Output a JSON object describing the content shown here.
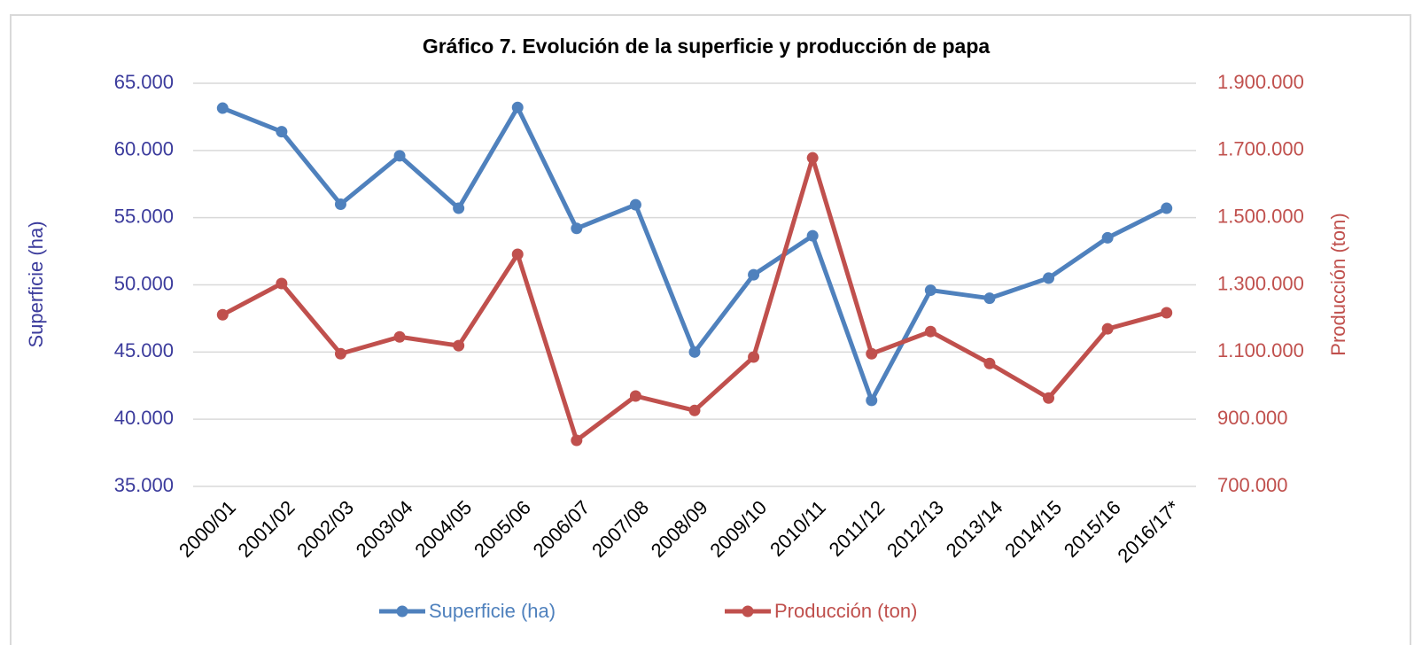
{
  "chart_data": {
    "type": "line",
    "title": "Gráfico 7. Evolución de la superficie y producción de papa",
    "y_label": "Superficie (ha)",
    "y2_label": "Producción (ton)",
    "categories": [
      "2000/01",
      "2001/02",
      "2002/03",
      "2003/04",
      "2004/05",
      "2005/06",
      "2006/07",
      "2007/08",
      "2008/09",
      "2009/10",
      "2010/11",
      "2011/12",
      "2012/13",
      "2013/14",
      "2014/15",
      "2015/16",
      "2016/17*"
    ],
    "series": [
      {
        "name": "Superficie (ha)",
        "color": "#4f81bd",
        "values": [
          63150,
          61400,
          56000,
          59600,
          55700,
          63200,
          54200,
          55960,
          45000,
          50750,
          53650,
          41400,
          49600,
          49000,
          50500,
          53500,
          55700
        ]
      },
      {
        "name": "Producción (ton)",
        "color": "#c0504d",
        "axis": "y2",
        "values": [
          1211000,
          1304000,
          1095000,
          1145000,
          1119000,
          1391000,
          837000,
          969000,
          926000,
          1085000,
          1678000,
          1095000,
          1161000,
          1066000,
          963000,
          1169000,
          1217000
        ]
      }
    ],
    "ylim": [
      35000,
      65000
    ],
    "yticks": [
      {
        "value": 35000,
        "label": "35.000"
      },
      {
        "value": 40000,
        "label": "40.000"
      },
      {
        "value": 45000,
        "label": "45.000"
      },
      {
        "value": 50000,
        "label": "50.000"
      },
      {
        "value": 55000,
        "label": "55.000"
      },
      {
        "value": 60000,
        "label": "60.000"
      },
      {
        "value": 65000,
        "label": "65.000"
      }
    ],
    "y2lim": [
      700000,
      1900000
    ],
    "y2ticks": [
      {
        "value": 700000,
        "label": "700.000"
      },
      {
        "value": 900000,
        "label": "900.000"
      },
      {
        "value": 1100000,
        "label": "1.100.000"
      },
      {
        "value": 1300000,
        "label": "1.300.000"
      },
      {
        "value": 1500000,
        "label": "1.500.000"
      },
      {
        "value": 1700000,
        "label": "1.700.000"
      },
      {
        "value": 1900000,
        "label": "1.900.000"
      }
    ],
    "grid": true,
    "legend": "bottom"
  }
}
